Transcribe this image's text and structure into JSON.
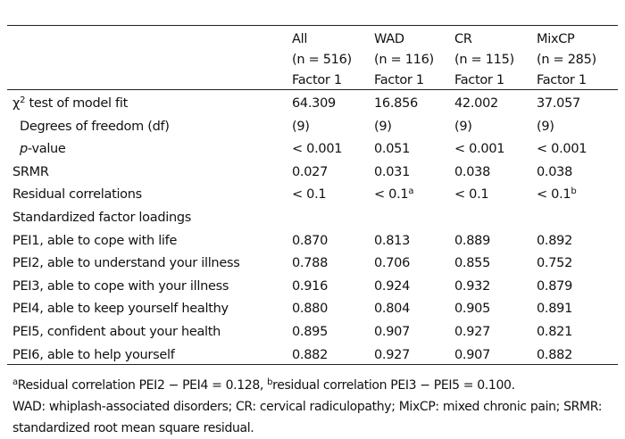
{
  "table": {
    "columns": [
      {
        "name": "All",
        "n": "(n = 516)",
        "factor": "Factor 1"
      },
      {
        "name": "WAD",
        "n": "(n = 116)",
        "factor": "Factor 1"
      },
      {
        "name": "CR",
        "n": "(n = 115)",
        "factor": "Factor 1"
      },
      {
        "name": "MixCP",
        "n": "(n = 285)",
        "factor": "Factor 1"
      }
    ],
    "rows": [
      {
        "label": [
          {
            "text": "χ"
          },
          {
            "text": "2",
            "style": "sup"
          },
          {
            "text": " test of model fit"
          }
        ],
        "values": [
          "64.309",
          "16.856",
          "42.002",
          "37.057"
        ]
      },
      {
        "label": "Degrees of freedom (df)",
        "indent": true,
        "values": [
          "(9)",
          "(9)",
          "(9)",
          "(9)"
        ]
      },
      {
        "label": [
          {
            "text": "p",
            "style": "italic"
          },
          {
            "text": "-value"
          }
        ],
        "indent": true,
        "values": [
          "< 0.001",
          "0.051",
          "< 0.001",
          "< 0.001"
        ]
      },
      {
        "label": "SRMR",
        "values": [
          "0.027",
          "0.031",
          "0.038",
          "0.038"
        ]
      },
      {
        "label": "Residual correlations",
        "values": [
          "< 0.1",
          [
            {
              "text": "< 0.1"
            },
            {
              "text": "a",
              "style": "sup"
            }
          ],
          "< 0.1",
          [
            {
              "text": "< 0.1"
            },
            {
              "text": "b",
              "style": "sup"
            }
          ]
        ]
      },
      {
        "label": "Standardized factor loadings",
        "values": []
      },
      {
        "label": "PEI1, able to cope with life",
        "values": [
          "0.870",
          "0.813",
          "0.889",
          "0.892"
        ]
      },
      {
        "label": "PEI2, able to understand your illness",
        "values": [
          "0.788",
          "0.706",
          "0.855",
          "0.752"
        ]
      },
      {
        "label": "PEI3, able to cope with your illness",
        "values": [
          "0.916",
          "0.924",
          "0.932",
          "0.879"
        ]
      },
      {
        "label": "PEI4, able to keep yourself healthy",
        "values": [
          "0.880",
          "0.804",
          "0.905",
          "0.891"
        ]
      },
      {
        "label": "PEI5, confident about your health",
        "values": [
          "0.895",
          "0.907",
          "0.927",
          "0.821"
        ]
      },
      {
        "label": "PEI6, able to help yourself",
        "values": [
          "0.882",
          "0.927",
          "0.907",
          "0.882"
        ]
      }
    ],
    "footnotes": [
      [
        {
          "text": "a",
          "style": "sup"
        },
        {
          "text": "Residual correlation PEI2 − PEI4 = 0.128, "
        },
        {
          "text": "b",
          "style": "sup"
        },
        {
          "text": "residual correlation PEI3 − PEI5 = 0.100."
        }
      ],
      "WAD: whiplash-associated disorders; CR: cervical radiculopathy; MixCP: mixed chronic pain; SRMR: standardized root mean square residual."
    ]
  }
}
